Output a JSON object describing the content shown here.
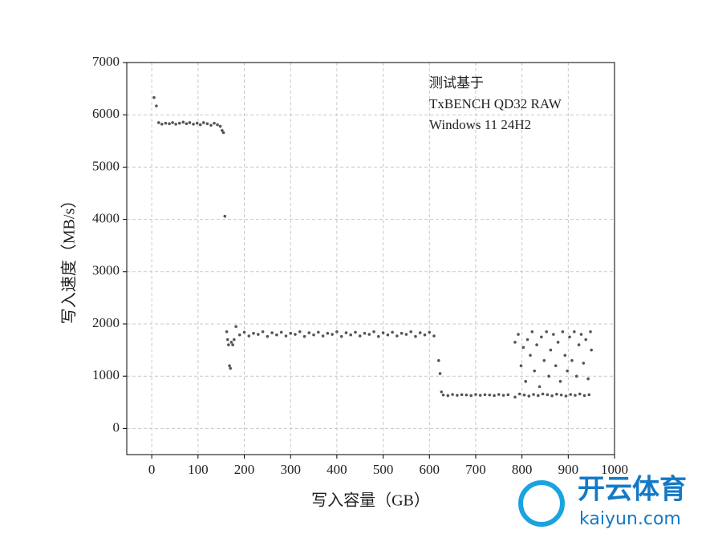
{
  "chart_data": {
    "type": "scatter",
    "xlabel": "写入容量（GB）",
    "ylabel": "写入速度（MB/s）",
    "annotation": [
      "测试基于",
      "TxBENCH QD32 RAW",
      "Windows 11 24H2"
    ],
    "color": "#555555",
    "grid": true,
    "xlim": [
      -54,
      1000
    ],
    "ylim": [
      -500,
      7000
    ],
    "xticks": [
      0,
      100,
      200,
      300,
      400,
      500,
      600,
      700,
      800,
      900,
      1000
    ],
    "yticks": [
      0,
      1000,
      2000,
      3000,
      4000,
      5000,
      6000,
      7000
    ],
    "x": [
      5,
      10,
      15,
      22,
      30,
      38,
      45,
      52,
      60,
      68,
      75,
      82,
      90,
      98,
      105,
      112,
      120,
      128,
      135,
      142,
      148,
      152,
      155,
      158,
      162,
      164,
      166,
      168,
      170,
      172,
      175,
      178,
      182,
      190,
      200,
      210,
      220,
      230,
      240,
      250,
      260,
      270,
      280,
      290,
      300,
      310,
      320,
      330,
      340,
      350,
      360,
      370,
      380,
      390,
      400,
      410,
      420,
      430,
      440,
      450,
      460,
      470,
      480,
      490,
      500,
      510,
      520,
      530,
      540,
      550,
      560,
      570,
      580,
      590,
      600,
      610,
      620,
      623,
      626,
      630,
      640,
      650,
      660,
      670,
      680,
      690,
      700,
      710,
      720,
      730,
      740,
      750,
      760,
      770,
      785,
      795,
      805,
      815,
      825,
      835,
      845,
      855,
      865,
      875,
      885,
      895,
      905,
      915,
      925,
      935,
      945,
      785,
      792,
      798,
      803,
      808,
      812,
      818,
      822,
      827,
      832,
      838,
      842,
      848,
      853,
      858,
      862,
      868,
      873,
      878,
      883,
      888,
      893,
      898,
      903,
      908,
      913,
      918,
      923,
      928,
      933,
      938,
      943,
      948,
      950
    ],
    "values": [
      6330,
      6170,
      5850,
      5820,
      5840,
      5830,
      5850,
      5820,
      5840,
      5860,
      5830,
      5850,
      5820,
      5840,
      5810,
      5850,
      5830,
      5800,
      5840,
      5810,
      5780,
      5700,
      5660,
      4060,
      1850,
      1700,
      1600,
      1200,
      1150,
      1650,
      1600,
      1700,
      1950,
      1790,
      1840,
      1770,
      1820,
      1800,
      1850,
      1760,
      1830,
      1790,
      1840,
      1770,
      1820,
      1800,
      1850,
      1760,
      1830,
      1790,
      1840,
      1770,
      1820,
      1800,
      1850,
      1760,
      1830,
      1790,
      1840,
      1770,
      1820,
      1800,
      1850,
      1760,
      1830,
      1790,
      1840,
      1770,
      1820,
      1800,
      1850,
      1760,
      1830,
      1790,
      1840,
      1770,
      1300,
      1050,
      700,
      640,
      630,
      650,
      635,
      645,
      640,
      630,
      650,
      635,
      645,
      640,
      630,
      650,
      635,
      645,
      600,
      660,
      640,
      620,
      650,
      630,
      660,
      645,
      625,
      655,
      640,
      620,
      650,
      635,
      660,
      630,
      645,
      1650,
      1800,
      1200,
      1550,
      900,
      1700,
      1400,
      1850,
      1100,
      1600,
      800,
      1750,
      1300,
      1850,
      1000,
      1500,
      1800,
      1200,
      1650,
      900,
      1850,
      1400,
      1100,
      1750,
      1300,
      1850,
      1000,
      1600,
      1800,
      1250,
      1700,
      950,
      1850,
      1500
    ]
  },
  "watermark": {
    "name": "开云体育",
    "url": "kaiyun.com"
  }
}
